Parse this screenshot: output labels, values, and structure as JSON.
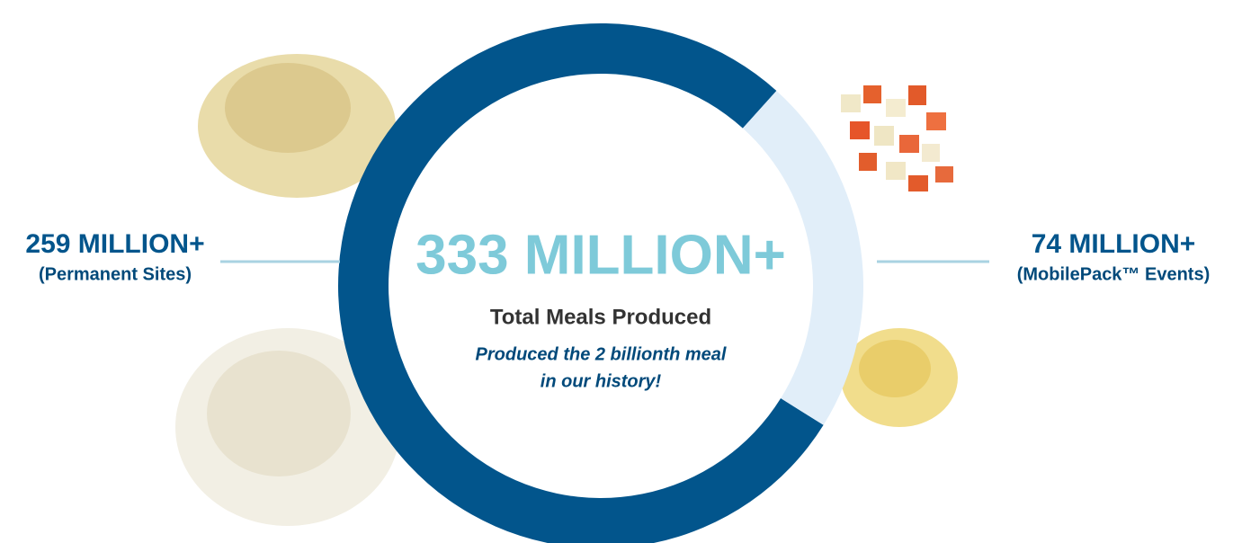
{
  "chart_data": {
    "type": "donut",
    "categories": [
      "(Permanent Sites)",
      "(MobilePack™ Events)"
    ],
    "values": [
      259,
      74
    ],
    "value_labels": [
      "259 MILLION+",
      "74 MILLION+"
    ],
    "colors": [
      "#02558c",
      "#e1eef9"
    ],
    "center_label": "333 MILLION+",
    "center_subtitle": "Total Meals Produced",
    "center_note": [
      "Produced the 2 billionth meal",
      "in our history!"
    ]
  }
}
